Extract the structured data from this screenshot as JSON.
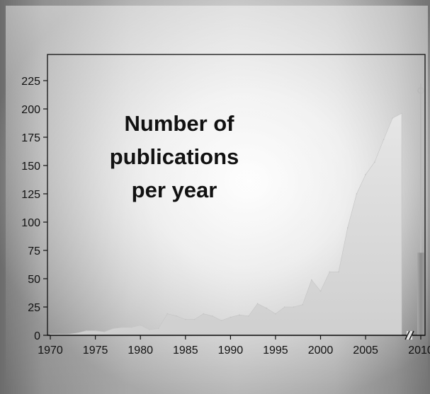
{
  "chart_data": {
    "type": "area",
    "title": "Number of publications per year",
    "title_lines": [
      "Number of",
      "publications",
      "per year"
    ],
    "xlabel": "",
    "ylabel": "",
    "xlim": [
      1969.5,
      2009.5
    ],
    "ylim": [
      0,
      225
    ],
    "x_ticks": [
      1970,
      1975,
      1980,
      1985,
      1990,
      1995,
      2000,
      2005
    ],
    "y_ticks": [
      0,
      25,
      50,
      75,
      100,
      125,
      150,
      175,
      200,
      225
    ],
    "axis_break": true,
    "x": [
      1970,
      1971,
      1972,
      1973,
      1974,
      1975,
      1976,
      1977,
      1978,
      1979,
      1980,
      1981,
      1982,
      1983,
      1984,
      1985,
      1986,
      1987,
      1988,
      1989,
      1990,
      1991,
      1992,
      1993,
      1994,
      1995,
      1996,
      1997,
      1998,
      1999,
      2000,
      2001,
      2002,
      2003,
      2004,
      2005,
      2006,
      2007,
      2008,
      2009
    ],
    "series": [
      {
        "values": [
          1,
          1,
          1,
          2,
          4,
          4,
          3,
          6,
          7,
          7,
          9,
          5,
          6,
          19,
          17,
          14,
          14,
          19,
          17,
          13,
          16,
          18,
          17,
          28,
          24,
          19,
          25,
          25,
          27,
          49,
          39,
          56,
          56,
          95,
          125,
          142,
          153,
          173,
          192,
          196
        ]
      }
    ],
    "extra_bar": {
      "x": 2010,
      "value": 73,
      "label": "2010"
    },
    "grid": false,
    "colors": {
      "area": "#cdcdcd",
      "plot_frame": "#111111",
      "extra_bar": "#8c8c8c",
      "axis": "#111111"
    }
  }
}
